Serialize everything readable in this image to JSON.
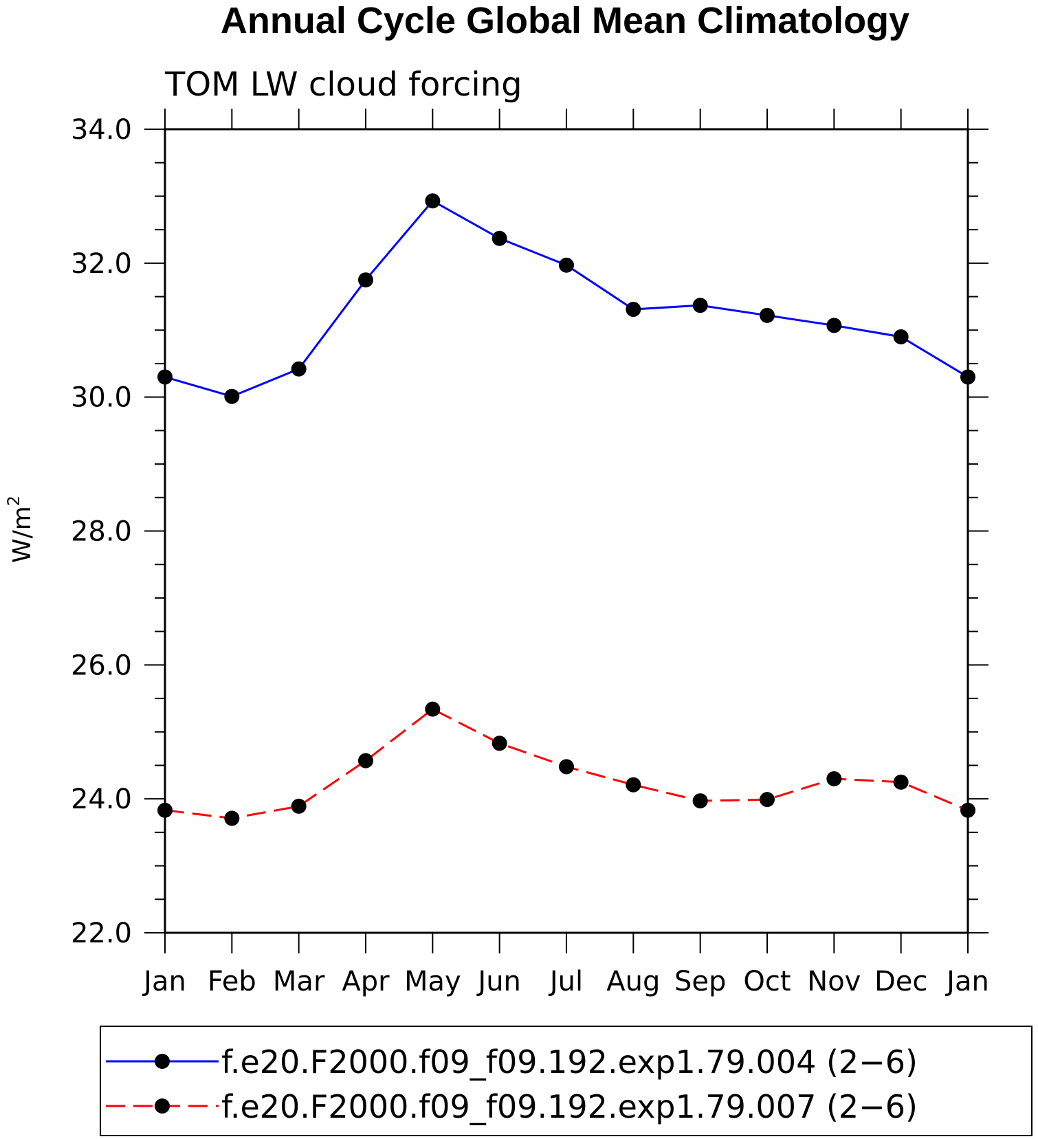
{
  "chart_data": {
    "type": "line",
    "title": "Annual Cycle Global Mean Climatology",
    "subtitle": "TOM LW cloud forcing",
    "ylabel": "W/m",
    "ylabel_sup": "2",
    "categories": [
      "Jan",
      "Feb",
      "Mar",
      "Apr",
      "May",
      "Jun",
      "Jul",
      "Aug",
      "Sep",
      "Oct",
      "Nov",
      "Dec",
      "Jan"
    ],
    "ylim": [
      22.0,
      34.0
    ],
    "yticks": [
      "22.0",
      "24.0",
      "26.0",
      "28.0",
      "30.0",
      "32.0",
      "34.0"
    ],
    "ytick_values": [
      22,
      24,
      26,
      28,
      30,
      32,
      34
    ],
    "series": [
      {
        "name": "f.e20.F2000.f09_f09.192.exp1.79.004 (2−6)",
        "color": "#0000ff",
        "dash": "solid",
        "values": [
          30.3,
          30.01,
          30.42,
          31.75,
          32.93,
          32.37,
          31.97,
          31.31,
          31.37,
          31.22,
          31.07,
          30.9,
          30.3
        ]
      },
      {
        "name": "f.e20.F2000.f09_f09.192.exp1.79.007 (2−6)",
        "color": "#ff0000",
        "dash": "dashed",
        "values": [
          23.83,
          23.71,
          23.89,
          24.57,
          25.34,
          24.83,
          24.48,
          24.21,
          23.97,
          23.99,
          24.3,
          24.25,
          23.83
        ]
      }
    ],
    "grid": false,
    "legend_position": "bottom",
    "marker": "filled-circle"
  }
}
